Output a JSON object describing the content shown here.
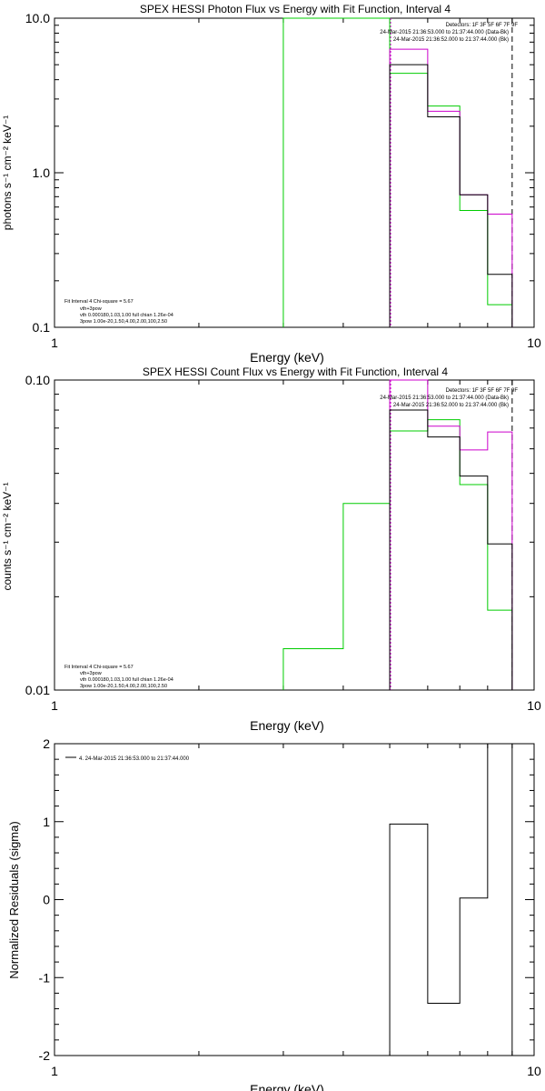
{
  "chart_data": [
    {
      "type": "line",
      "title": "SPEX HESSI Photon Flux vs Energy with Fit Function, Interval 4",
      "xlabel": "Energy (keV)",
      "ylabel": "photons s⁻¹ cm⁻² keV⁻¹",
      "xscale": "log",
      "yscale": "log",
      "xlim": [
        1,
        10
      ],
      "ylim": [
        0.1,
        10
      ],
      "xticks": [
        {
          "v": 1,
          "label": "1"
        },
        {
          "v": 10,
          "label": "10"
        }
      ],
      "yticks": [
        {
          "v": 0.1,
          "label": "0.1"
        },
        {
          "v": 1,
          "label": "1.0"
        },
        {
          "v": 10,
          "label": "10.0"
        }
      ],
      "header_lines": [
        {
          "text": "Detectors: 1F 3F 5F 6F 7F 9F",
          "color": "#000000"
        },
        {
          "text": "24-Mar-2015 21:36:53.000 to 21:37:44.000 (Data-Bk)",
          "color": "#000000"
        },
        {
          "text": "24-Mar-2015 21:36:52.000 to 21:37:44.000 (Bk)",
          "color": "#cc00cc"
        }
      ],
      "info_lines": [
        {
          "text": "Fit Interval 4   Chi-square = 5.67",
          "color": "#000000"
        },
        {
          "text": "vth+3pow",
          "color": "#cc0000"
        },
        {
          "text": "vth 0.000180,1.03,1.00  full chian 1.26e-04",
          "color": "#00cc00"
        },
        {
          "text": "3pow 1.00e-20,1.50,4.00,2.00,100,2.50",
          "color": "#cccc00"
        }
      ],
      "markers": [
        {
          "x": 5.0,
          "color": "#00cc00",
          "style": "dotted"
        },
        {
          "x": 5.0,
          "color": "#cc00cc",
          "style": "dotted"
        },
        {
          "x": 9.0,
          "color": "#000000",
          "style": "dashed"
        }
      ],
      "series": [
        {
          "name": "vth",
          "color": "#00cc00",
          "edges": [
            3,
            5,
            6,
            7,
            8,
            9
          ],
          "values": [
            10,
            4.4,
            2.7,
            0.57,
            0.14
          ]
        },
        {
          "name": "Bk",
          "color": "#cc00cc",
          "edges": [
            5,
            6,
            7,
            8,
            9
          ],
          "values": [
            6.3,
            2.5,
            0.72,
            0.54
          ]
        },
        {
          "name": "Data-Bk",
          "color": "#000000",
          "edges": [
            5,
            6,
            7,
            8,
            9
          ],
          "values": [
            5.0,
            2.3,
            0.72,
            0.22
          ]
        }
      ]
    },
    {
      "type": "line",
      "title": "SPEX HESSI Count Flux vs Energy with Fit Function, Interval 4",
      "xlabel": "Energy (keV)",
      "ylabel": "counts s⁻¹ cm⁻² keV⁻¹",
      "xscale": "log",
      "yscale": "log",
      "xlim": [
        1,
        10
      ],
      "ylim": [
        0.01,
        0.1
      ],
      "xticks": [
        {
          "v": 1,
          "label": "1"
        },
        {
          "v": 10,
          "label": "10"
        }
      ],
      "yticks": [
        {
          "v": 0.01,
          "label": "0.01"
        },
        {
          "v": 0.1,
          "label": "0.10"
        }
      ],
      "header_lines": [
        {
          "text": "Detectors: 1F 3F 5F 6F 7F 9F",
          "color": "#000000"
        },
        {
          "text": "24-Mar-2015 21:36:53.000 to 21:37:44.000 (Data-Bk)",
          "color": "#000000"
        },
        {
          "text": "24-Mar-2015 21:36:52.000 to 21:37:44.000 (Bk)",
          "color": "#cc00cc"
        }
      ],
      "info_lines": [
        {
          "text": "Fit Interval 4   Chi-square = 5.67",
          "color": "#000000"
        },
        {
          "text": "vth+3pow",
          "color": "#cc0000"
        },
        {
          "text": "vth 0.000180,1.03,1.00  full chian 1.26e-04",
          "color": "#00cc00"
        },
        {
          "text": "3pow 1.00e-20,1.50,4.00,2.00,100,2.50",
          "color": "#cccc00"
        }
      ],
      "markers": [
        {
          "x": 5.0,
          "color": "#00cc00",
          "style": "dotted"
        },
        {
          "x": 5.0,
          "color": "#cc00cc",
          "style": "dotted"
        },
        {
          "x": 9.0,
          "color": "#000000",
          "style": "dashed"
        }
      ],
      "series": [
        {
          "name": "vth",
          "color": "#00cc00",
          "edges": [
            3,
            3.5,
            4,
            5,
            6,
            7,
            8,
            9
          ],
          "values": [
            0.0136,
            0.0136,
            0.04,
            0.0685,
            0.0745,
            0.046,
            0.0181
          ]
        },
        {
          "name": "Bk",
          "color": "#cc00cc",
          "edges": [
            5,
            6,
            7,
            8,
            9
          ],
          "values": [
            0.1,
            0.071,
            0.0595,
            0.068
          ]
        },
        {
          "name": "Data-Bk",
          "color": "#000000",
          "edges": [
            5,
            6,
            7,
            8,
            9
          ],
          "values": [
            0.08,
            0.0655,
            0.049,
            0.0296
          ]
        }
      ]
    },
    {
      "type": "line",
      "title": "",
      "xlabel": "Energy (keV)",
      "ylabel": "Normalized Residuals (sigma)",
      "xscale": "log",
      "yscale": "linear",
      "xlim": [
        1,
        10
      ],
      "ylim": [
        -2,
        2
      ],
      "xticks": [
        {
          "v": 1,
          "label": "1"
        },
        {
          "v": 10,
          "label": "10"
        }
      ],
      "yticks": [
        {
          "v": -2,
          "label": "-2"
        },
        {
          "v": -1,
          "label": "-1"
        },
        {
          "v": 0,
          "label": "0"
        },
        {
          "v": 1,
          "label": "1"
        },
        {
          "v": 2,
          "label": "2"
        }
      ],
      "legend": [
        {
          "text": "4. 24-Mar-2015 21:36:53.000 to 21:37:44.000",
          "color": "#000000"
        }
      ],
      "series": [
        {
          "name": "residuals",
          "color": "#000000",
          "edges": [
            5,
            6,
            7,
            8,
            9
          ],
          "values": [
            0.97,
            -1.33,
            0.02,
            2.0
          ]
        }
      ]
    }
  ]
}
